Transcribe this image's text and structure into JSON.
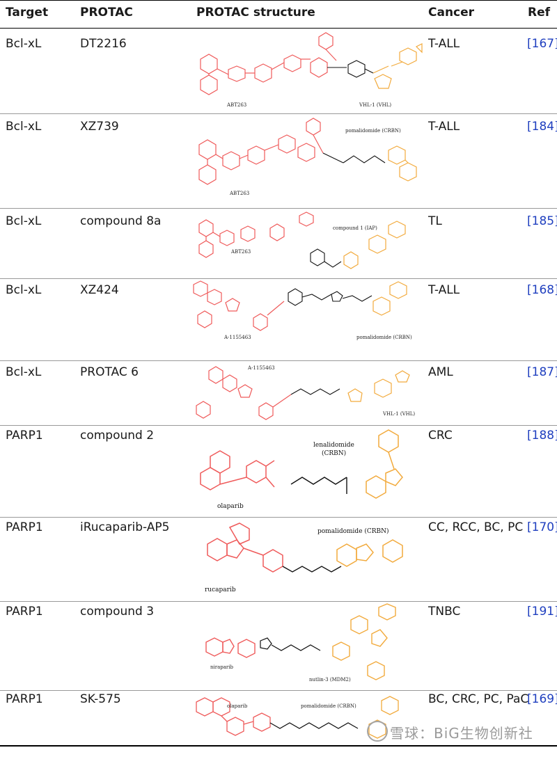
{
  "header": {
    "target": "Target",
    "protac": "PROTAC",
    "structure": "PROTAC structure",
    "cancer": "Cancer",
    "ref": "Ref"
  },
  "rows": [
    {
      "target": "Bcl-xL",
      "protac": "DT2216",
      "cancer": "T-ALL",
      "ref": "167",
      "labels": [
        "ABT263",
        "VHL-1 (VHL)"
      ]
    },
    {
      "target": "Bcl-xL",
      "protac": "XZ739",
      "cancer": "T-ALL",
      "ref": "184",
      "labels": [
        "pomalidomide (CRBN)",
        "ABT263"
      ]
    },
    {
      "target": "Bcl-xL",
      "protac": "compound 8a",
      "cancer": "TL",
      "ref": "185",
      "labels": [
        "compound 1 (IAP)",
        "ABT263"
      ]
    },
    {
      "target": "Bcl-xL",
      "protac": "XZ424",
      "cancer": "T-ALL",
      "ref": "168",
      "labels": [
        "A-1155463",
        "pomalidomide (CRBN)"
      ]
    },
    {
      "target": "Bcl-xL",
      "protac": "PROTAC 6",
      "cancer": "AML",
      "ref": "187",
      "labels": [
        "A-1155463",
        "VHL-1 (VHL)"
      ]
    },
    {
      "target": "PARP1",
      "protac": "compound 2",
      "cancer": "CRC",
      "ref": "188",
      "labels": [
        "lenalidomide",
        "(CRBN)",
        "olaparib"
      ]
    },
    {
      "target": "PARP1",
      "protac": "iRucaparib-AP5",
      "cancer": "CC, RCC, BC, PC",
      "ref": "170",
      "labels": [
        "pomalidomide (CRBN)",
        "rucaparib"
      ]
    },
    {
      "target": "PARP1",
      "protac": "compound 3",
      "cancer": "TNBC",
      "ref": "191",
      "labels": [
        "niraparib",
        "nutlin-3 (MDM2)"
      ]
    },
    {
      "target": "PARP1",
      "protac": "SK-575",
      "cancer": "BC, CRC, PC, PaC",
      "ref": "169",
      "labels": [
        "olaparib",
        "pomalidomide (CRBN)"
      ]
    }
  ],
  "watermark": "雪球：BiG生物创新社"
}
